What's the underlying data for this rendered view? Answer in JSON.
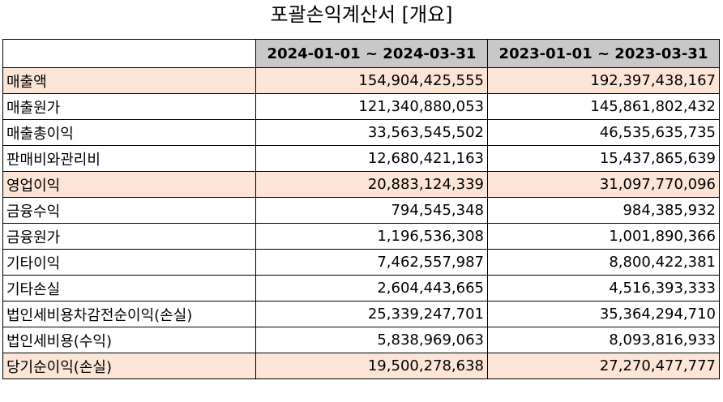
{
  "title": "포괄손익계산서 [개요]",
  "table": {
    "header": [
      "",
      "2024-01-01 ~ 2024-03-31",
      "2023-01-01 ~ 2023-03-31"
    ],
    "highlight_color": "#fce4d6",
    "header_color": "#c8c8c8",
    "rows": [
      {
        "label": "매출액",
        "v2024": "154,904,425,555",
        "v2023": "192,397,438,167",
        "highlight": true
      },
      {
        "label": "매출원가",
        "v2024": "121,340,880,053",
        "v2023": "145,861,802,432",
        "highlight": false
      },
      {
        "label": "매출총이익",
        "v2024": "33,563,545,502",
        "v2023": "46,535,635,735",
        "highlight": false
      },
      {
        "label": "판매비와관리비",
        "v2024": "12,680,421,163",
        "v2023": "15,437,865,639",
        "highlight": false
      },
      {
        "label": "영업이익",
        "v2024": "20,883,124,339",
        "v2023": "31,097,770,096",
        "highlight": true
      },
      {
        "label": "금융수익",
        "v2024": "794,545,348",
        "v2023": "984,385,932",
        "highlight": false
      },
      {
        "label": "금융원가",
        "v2024": "1,196,536,308",
        "v2023": "1,001,890,366",
        "highlight": false
      },
      {
        "label": "기타이익",
        "v2024": "7,462,557,987",
        "v2023": "8,800,422,381",
        "highlight": false
      },
      {
        "label": "기타손실",
        "v2024": "2,604,443,665",
        "v2023": "4,516,393,333",
        "highlight": false
      },
      {
        "label": "법인세비용차감전순이익(손실)",
        "v2024": "25,339,247,701",
        "v2023": "35,364,294,710",
        "highlight": false
      },
      {
        "label": "법인세비용(수익)",
        "v2024": "5,838,969,063",
        "v2023": "8,093,816,933",
        "highlight": false
      },
      {
        "label": "당기순이익(손실)",
        "v2024": "19,500,278,638",
        "v2023": "27,270,477,777",
        "highlight": true
      }
    ]
  }
}
